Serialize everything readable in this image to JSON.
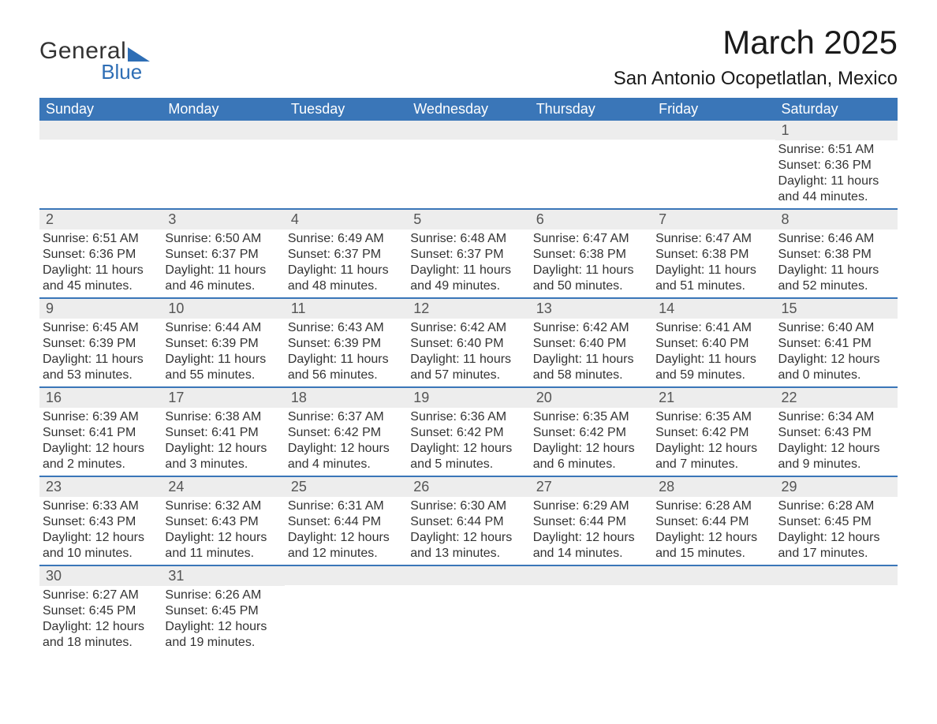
{
  "logo": {
    "word1": "General",
    "word2": "Blue"
  },
  "title": "March 2025",
  "location": "San Antonio Ocopetlatlan, Mexico",
  "colors": {
    "header_bg": "#3a76b8",
    "header_text": "#ffffff",
    "row_band": "#ededed",
    "border": "#3a76b8",
    "text": "#333333",
    "logo_accent": "#2e6eb5"
  },
  "typography": {
    "title_fontsize": 42,
    "location_fontsize": 24,
    "header_fontsize": 18,
    "daynum_fontsize": 18,
    "body_fontsize": 16
  },
  "weekday_headers": [
    "Sunday",
    "Monday",
    "Tuesday",
    "Wednesday",
    "Thursday",
    "Friday",
    "Saturday"
  ],
  "labels": {
    "sunrise": "Sunrise:",
    "sunset": "Sunset:",
    "daylight": "Daylight:"
  },
  "weeks": [
    [
      {
        "blank": true
      },
      {
        "blank": true
      },
      {
        "blank": true
      },
      {
        "blank": true
      },
      {
        "blank": true
      },
      {
        "blank": true
      },
      {
        "day": "1",
        "sunrise": "6:51 AM",
        "sunset": "6:36 PM",
        "daylight": "11 hours and 44 minutes."
      }
    ],
    [
      {
        "day": "2",
        "sunrise": "6:51 AM",
        "sunset": "6:36 PM",
        "daylight": "11 hours and 45 minutes."
      },
      {
        "day": "3",
        "sunrise": "6:50 AM",
        "sunset": "6:37 PM",
        "daylight": "11 hours and 46 minutes."
      },
      {
        "day": "4",
        "sunrise": "6:49 AM",
        "sunset": "6:37 PM",
        "daylight": "11 hours and 48 minutes."
      },
      {
        "day": "5",
        "sunrise": "6:48 AM",
        "sunset": "6:37 PM",
        "daylight": "11 hours and 49 minutes."
      },
      {
        "day": "6",
        "sunrise": "6:47 AM",
        "sunset": "6:38 PM",
        "daylight": "11 hours and 50 minutes."
      },
      {
        "day": "7",
        "sunrise": "6:47 AM",
        "sunset": "6:38 PM",
        "daylight": "11 hours and 51 minutes."
      },
      {
        "day": "8",
        "sunrise": "6:46 AM",
        "sunset": "6:38 PM",
        "daylight": "11 hours and 52 minutes."
      }
    ],
    [
      {
        "day": "9",
        "sunrise": "6:45 AM",
        "sunset": "6:39 PM",
        "daylight": "11 hours and 53 minutes."
      },
      {
        "day": "10",
        "sunrise": "6:44 AM",
        "sunset": "6:39 PM",
        "daylight": "11 hours and 55 minutes."
      },
      {
        "day": "11",
        "sunrise": "6:43 AM",
        "sunset": "6:39 PM",
        "daylight": "11 hours and 56 minutes."
      },
      {
        "day": "12",
        "sunrise": "6:42 AM",
        "sunset": "6:40 PM",
        "daylight": "11 hours and 57 minutes."
      },
      {
        "day": "13",
        "sunrise": "6:42 AM",
        "sunset": "6:40 PM",
        "daylight": "11 hours and 58 minutes."
      },
      {
        "day": "14",
        "sunrise": "6:41 AM",
        "sunset": "6:40 PM",
        "daylight": "11 hours and 59 minutes."
      },
      {
        "day": "15",
        "sunrise": "6:40 AM",
        "sunset": "6:41 PM",
        "daylight": "12 hours and 0 minutes."
      }
    ],
    [
      {
        "day": "16",
        "sunrise": "6:39 AM",
        "sunset": "6:41 PM",
        "daylight": "12 hours and 2 minutes."
      },
      {
        "day": "17",
        "sunrise": "6:38 AM",
        "sunset": "6:41 PM",
        "daylight": "12 hours and 3 minutes."
      },
      {
        "day": "18",
        "sunrise": "6:37 AM",
        "sunset": "6:42 PM",
        "daylight": "12 hours and 4 minutes."
      },
      {
        "day": "19",
        "sunrise": "6:36 AM",
        "sunset": "6:42 PM",
        "daylight": "12 hours and 5 minutes."
      },
      {
        "day": "20",
        "sunrise": "6:35 AM",
        "sunset": "6:42 PM",
        "daylight": "12 hours and 6 minutes."
      },
      {
        "day": "21",
        "sunrise": "6:35 AM",
        "sunset": "6:42 PM",
        "daylight": "12 hours and 7 minutes."
      },
      {
        "day": "22",
        "sunrise": "6:34 AM",
        "sunset": "6:43 PM",
        "daylight": "12 hours and 9 minutes."
      }
    ],
    [
      {
        "day": "23",
        "sunrise": "6:33 AM",
        "sunset": "6:43 PM",
        "daylight": "12 hours and 10 minutes."
      },
      {
        "day": "24",
        "sunrise": "6:32 AM",
        "sunset": "6:43 PM",
        "daylight": "12 hours and 11 minutes."
      },
      {
        "day": "25",
        "sunrise": "6:31 AM",
        "sunset": "6:44 PM",
        "daylight": "12 hours and 12 minutes."
      },
      {
        "day": "26",
        "sunrise": "6:30 AM",
        "sunset": "6:44 PM",
        "daylight": "12 hours and 13 minutes."
      },
      {
        "day": "27",
        "sunrise": "6:29 AM",
        "sunset": "6:44 PM",
        "daylight": "12 hours and 14 minutes."
      },
      {
        "day": "28",
        "sunrise": "6:28 AM",
        "sunset": "6:44 PM",
        "daylight": "12 hours and 15 minutes."
      },
      {
        "day": "29",
        "sunrise": "6:28 AM",
        "sunset": "6:45 PM",
        "daylight": "12 hours and 17 minutes."
      }
    ],
    [
      {
        "day": "30",
        "sunrise": "6:27 AM",
        "sunset": "6:45 PM",
        "daylight": "12 hours and 18 minutes."
      },
      {
        "day": "31",
        "sunrise": "6:26 AM",
        "sunset": "6:45 PM",
        "daylight": "12 hours and 19 minutes."
      },
      {
        "blank": true
      },
      {
        "blank": true
      },
      {
        "blank": true
      },
      {
        "blank": true
      },
      {
        "blank": true
      }
    ]
  ]
}
